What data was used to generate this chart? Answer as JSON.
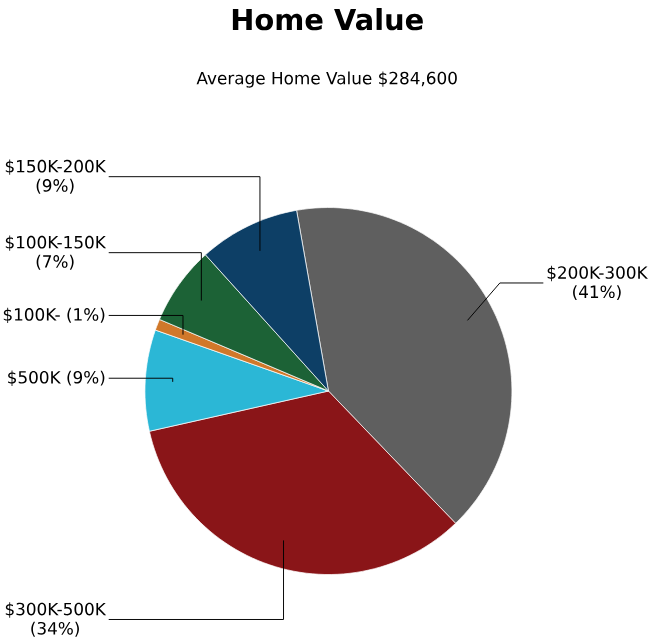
{
  "chart_data": {
    "type": "pie",
    "title": "Home Value",
    "subtitle": "Average Home Value  $284,600",
    "categories": [
      "$200K-300K",
      "$300K-500K",
      "$500K",
      "$100K-",
      "$100K-150K",
      "$150K-200K"
    ],
    "values": [
      41,
      34,
      9,
      1,
      7,
      9
    ],
    "colors": [
      "#5f5f5f",
      "#8a1518",
      "#2bb7d6",
      "#d0782a",
      "#1c6236",
      "#0d3f66"
    ],
    "value_labels": [
      "(41%)",
      "(34%)",
      "(9%)",
      "(1%)",
      "(7%)",
      "(9%)"
    ]
  }
}
